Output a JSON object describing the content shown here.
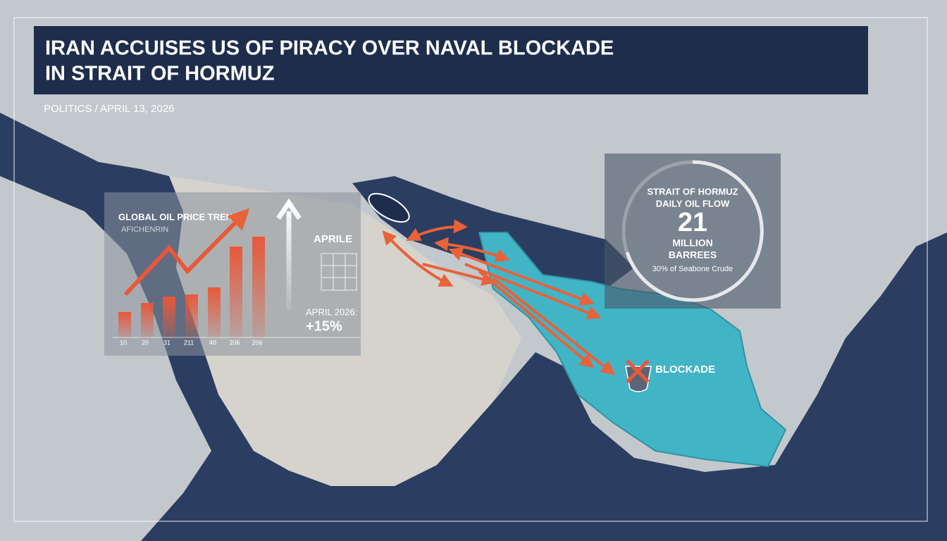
{
  "header": {
    "title_line1": "IRAN ACCUISES US OF PIRACY OVER NAVAL BLOCKADE",
    "title_line2": "IN STRAIT OF HORMUZ",
    "dateline": "POLITICS / APRIL 13, 2026"
  },
  "price_panel": {
    "title": "GLOBAL OIL PRICE TREND",
    "subtitle": "AFICHENRIN",
    "x_labels": [
      "10",
      "20",
      "31",
      "211",
      "40",
      "206",
      "206"
    ],
    "side_label": "APRILE",
    "change_label": "APRIL 2026:",
    "change_value": "+15%"
  },
  "flow_panel": {
    "title_line1": "STRAIT OF HORMUZ",
    "title_line2": "DAILY OIL FLOW",
    "value": "21",
    "unit_line1": "MILLION",
    "unit_line2": "BARREES",
    "note": "30% of Seabone Crude"
  },
  "map": {
    "blockade_label": "BLOCKADE"
  }
}
